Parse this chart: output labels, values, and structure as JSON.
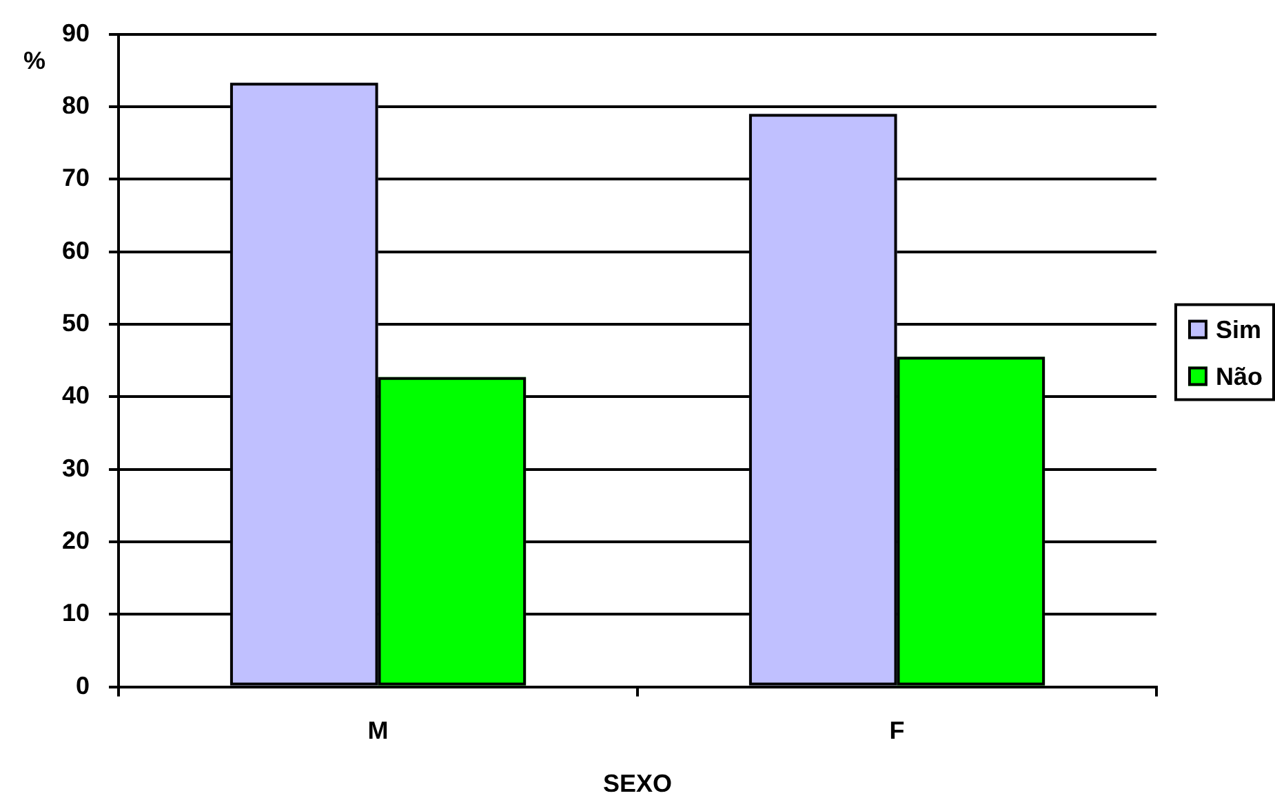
{
  "chart_data": {
    "type": "bar",
    "xlabel": "SEXO",
    "ylabel": "%",
    "categories": [
      "M",
      "F"
    ],
    "series": [
      {
        "name": "Sim",
        "color": "#c0c0ff",
        "values": [
          83.3,
          79.0
        ]
      },
      {
        "name": "Não",
        "color": "#00ff00",
        "values": [
          42.7,
          45.5
        ]
      }
    ],
    "ylim": [
      0,
      90
    ],
    "yticks": [
      0,
      10,
      20,
      30,
      40,
      50,
      60,
      70,
      80,
      90
    ],
    "grid": "y",
    "legend": "right"
  }
}
